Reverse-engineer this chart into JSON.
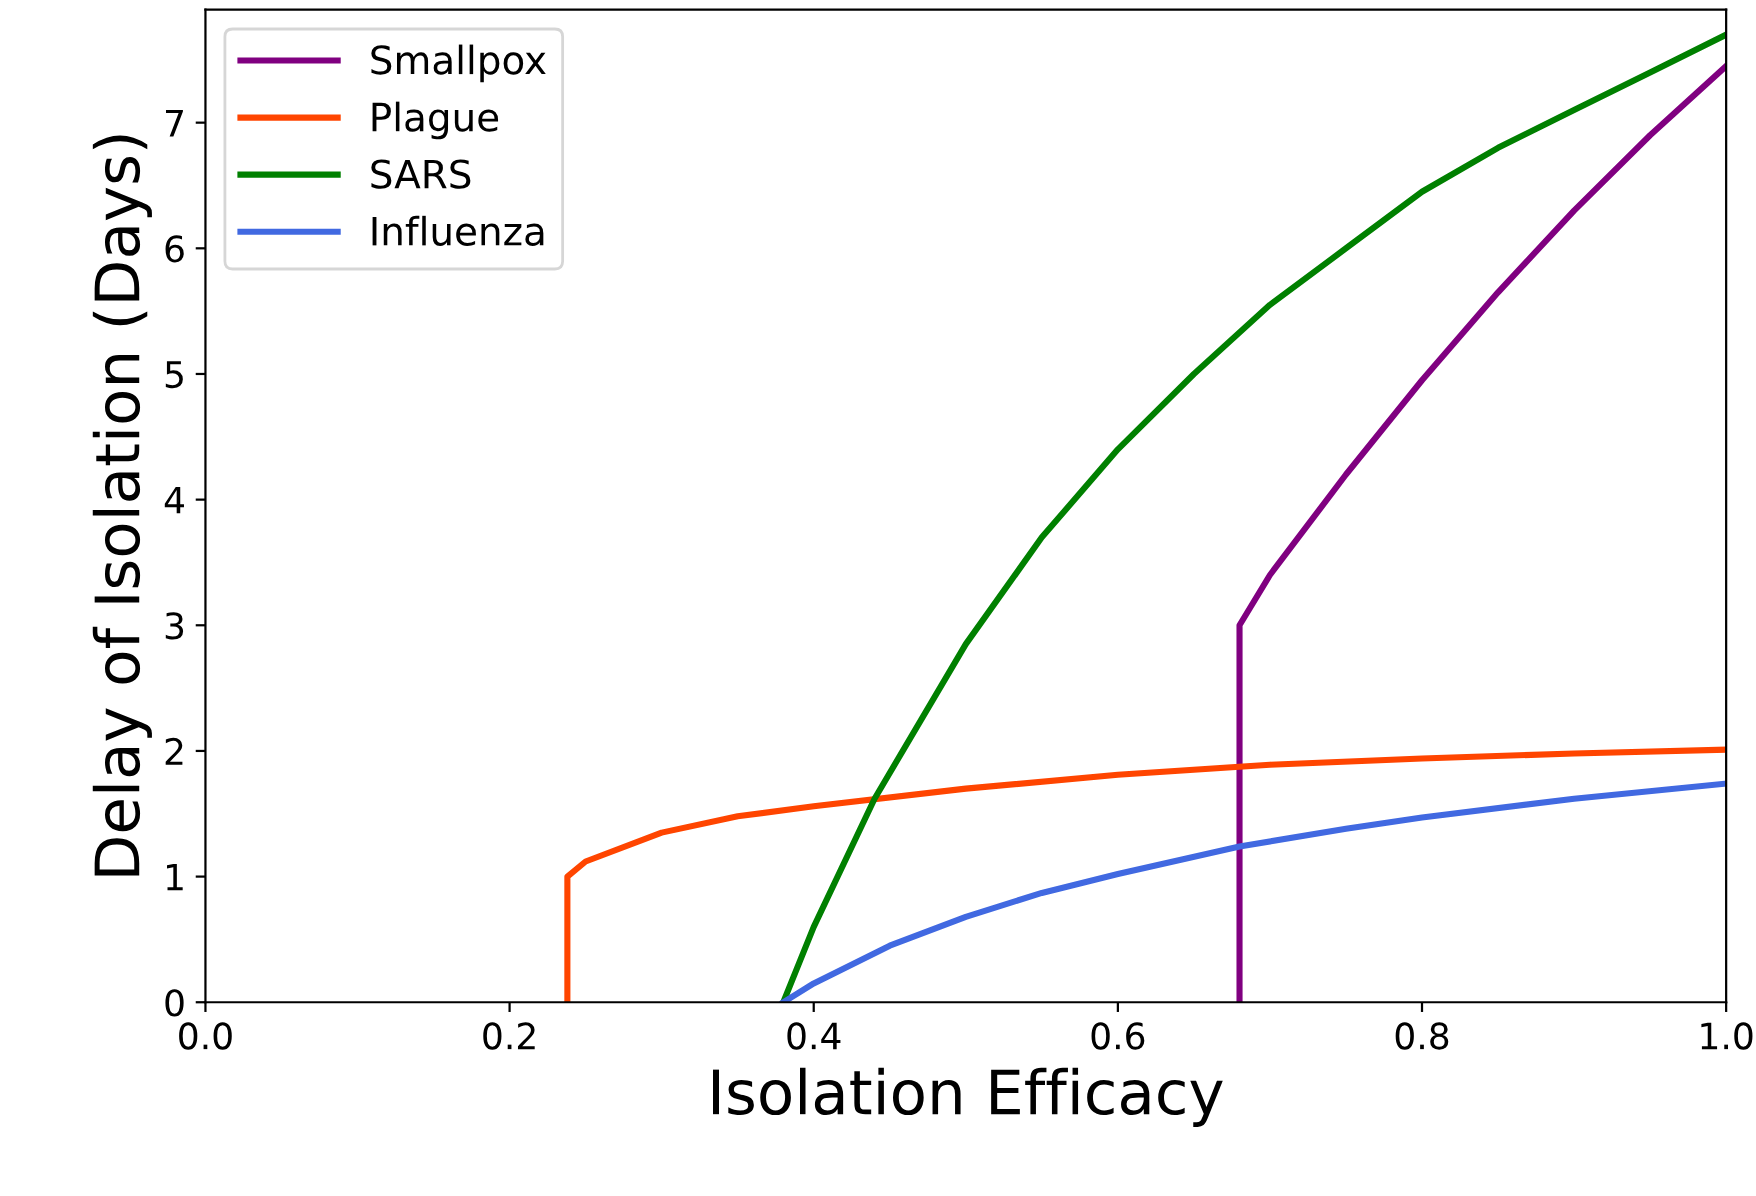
{
  "chart_data": {
    "type": "line",
    "xlabel": "Isolation Efficacy",
    "ylabel": "Delay of Isolation (Days)",
    "xlim": [
      0,
      1.0
    ],
    "ylim": [
      0,
      7.9
    ],
    "xticks": [
      {
        "value": 0,
        "label": "0.0"
      },
      {
        "value": 0.2,
        "label": "0.2"
      },
      {
        "value": 0.4,
        "label": "0.4"
      },
      {
        "value": 0.6,
        "label": "0.6"
      },
      {
        "value": 0.8,
        "label": "0.8"
      },
      {
        "value": 1.0,
        "label": "1.0"
      }
    ],
    "yticks": [
      0,
      1,
      2,
      3,
      4,
      5,
      6,
      7
    ],
    "grid": false,
    "legend": "top left",
    "marker": "none",
    "line_style": "solid",
    "series": [
      {
        "name": "Smallpox",
        "color": "#800080",
        "x": [
          0.68,
          0.68,
          0.7,
          0.75,
          0.8,
          0.85,
          0.9,
          0.95,
          1.0
        ],
        "values": [
          0,
          3,
          3.4,
          4.2,
          4.95,
          5.65,
          6.3,
          6.9,
          7.45
        ]
      },
      {
        "name": "Plague",
        "color": "#ff4500",
        "x": [
          0.238,
          0.238,
          0.25,
          0.3,
          0.35,
          0.4,
          0.5,
          0.6,
          0.7,
          0.8,
          0.9,
          1.0
        ],
        "values": [
          0,
          1.0,
          1.12,
          1.35,
          1.48,
          1.56,
          1.7,
          1.81,
          1.89,
          1.94,
          1.98,
          2.01
        ]
      },
      {
        "name": "SARS",
        "color": "#008000",
        "x": [
          0.38,
          0.4,
          0.44,
          0.5,
          0.55,
          0.6,
          0.65,
          0.7,
          0.75,
          0.8,
          0.85,
          0.9,
          0.95,
          1.0
        ],
        "values": [
          0,
          0.6,
          1.62,
          2.85,
          3.7,
          4.4,
          5.0,
          5.55,
          6.0,
          6.45,
          6.8,
          7.1,
          7.4,
          7.7
        ]
      },
      {
        "name": "Influenza",
        "color": "#4169e1",
        "x": [
          0.38,
          0.4,
          0.45,
          0.5,
          0.55,
          0.6,
          0.68,
          0.75,
          0.8,
          0.9,
          1.0
        ],
        "values": [
          0,
          0.15,
          0.45,
          0.68,
          0.87,
          1.02,
          1.24,
          1.38,
          1.47,
          1.62,
          1.74
        ]
      }
    ]
  }
}
